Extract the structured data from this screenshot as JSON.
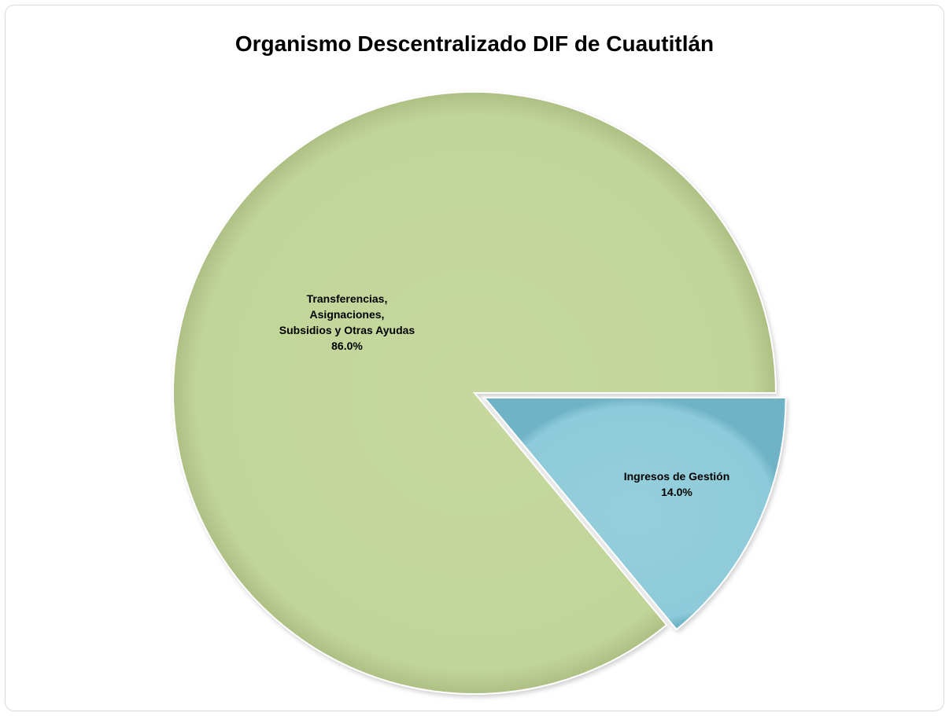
{
  "chart_data": {
    "type": "pie",
    "title": "Organismo Descentralizado DIF de Cuautitlán",
    "slices": [
      {
        "name": "Transferencias, Asignaciones, Subsidios y Otras Ayudas",
        "label_lines": [
          "Transferencias,",
          "Asignaciones,",
          "Subsidios y Otras Ayudas"
        ],
        "value": 86.0,
        "value_label": "86.0%",
        "color": "#c4d79b",
        "exploded": false
      },
      {
        "name": "Ingresos de Gestión",
        "label_lines": [
          "Ingresos de Gestión"
        ],
        "value": 14.0,
        "value_label": "14.0%",
        "color": "#92cddc",
        "exploded": true
      }
    ],
    "legend": "none",
    "data_labels": "inside"
  }
}
